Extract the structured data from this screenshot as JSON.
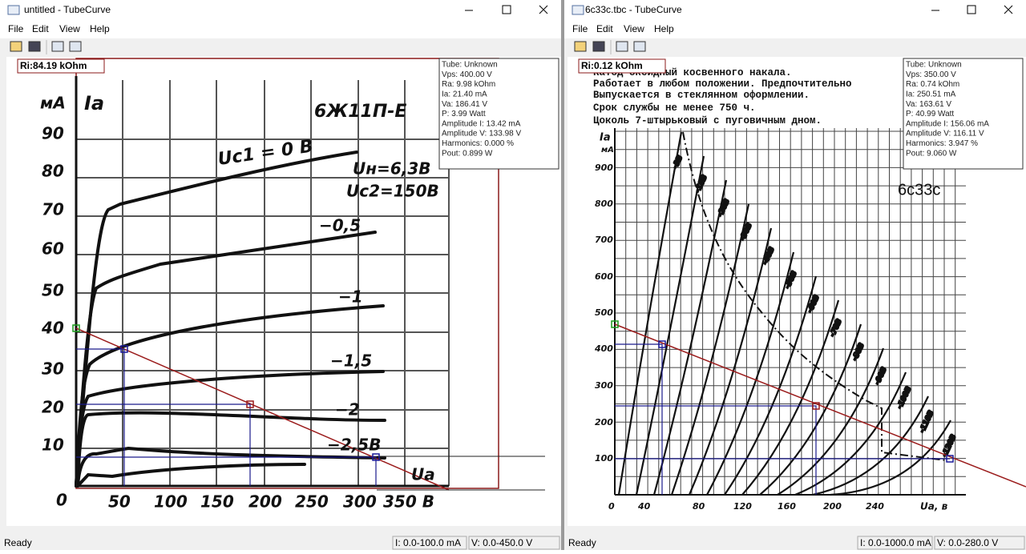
{
  "windows": [
    {
      "title": "untitled - TubeCurve",
      "menu": [
        "File",
        "Edit",
        "View",
        "Help"
      ],
      "ri": "Ri:84.19 kOhm",
      "info": [
        "Tube: Unknown",
        "Vps: 400.00 V",
        "Ra: 9.98 kOhm",
        "Ia: 21.40 mA",
        "Va: 186.41 V",
        "P: 3.99 Watt",
        "Amplitude I: 13.42 mA",
        "Amplitude V: 133.98 V",
        "Harmonics: 0.000 %",
        "Pout: 0.899 W"
      ],
      "status": {
        "ready": "Ready",
        "current": "I: 0.0-100.0 mA",
        "voltage": "V: 0.0-450.0 V"
      },
      "scan": {
        "unit": "мА",
        "axis_y": "Iа",
        "tube": "6Ж11П-Е",
        "yticks": [
          "0",
          "10",
          "20",
          "30",
          "40",
          "50",
          "60",
          "70",
          "80",
          "90"
        ],
        "xticks": [
          "50",
          "100",
          "150",
          "200",
          "250",
          "300",
          "350 В"
        ],
        "notes": [
          "Uc1 = 0 B",
          "Uн=6,3B",
          "Uc2=150B",
          "−0,5",
          "−1",
          "−1,5",
          "−2",
          "−2,5B",
          "Uа"
        ]
      }
    },
    {
      "title": "6c33c.tbc - TubeCurve",
      "menu": [
        "File",
        "Edit",
        "View",
        "Help"
      ],
      "ri": "Ri:0.12 kOhm",
      "info": [
        "Tube: Unknown",
        "Vps: 350.00 V",
        "Ra: 0.74 kOhm",
        "Ia: 250.51 mA",
        "Va: 163.61 V",
        "P: 40.99 Watt",
        "Amplitude I: 156.06 mA",
        "Amplitude V: 116.11 V",
        "Harmonics: 3.947 %",
        "Pout: 9.060 W"
      ],
      "status": {
        "ready": "Ready",
        "current": "I: 0.0-1000.0 mA",
        "voltage": "V: 0.0-280.0 V"
      },
      "scan": {
        "unit": "мА",
        "axis_y": "Iа",
        "tube": "6c33c",
        "text": [
          "Катод оксидный косвенного накала.",
          "Работает в любом положении. Предпочтительно",
          "Выпускается в стеклянном оформлении.",
          "Срок службы не менее 750 ч.",
          "Цоколь 7-штырьковый с пуговичным дном."
        ],
        "yticks": [
          "100",
          "200",
          "300",
          "400",
          "500",
          "600",
          "700",
          "800",
          "900"
        ],
        "xticks": [
          "0",
          "40",
          "80",
          "120",
          "160",
          "200",
          "240"
        ],
        "xlabel": "Uа, в",
        "curves": [
          "-3В",
          "-10В",
          "-20В",
          "-30В",
          "-40В",
          "-50В",
          "-60В",
          "-70В",
          "-80В",
          "-90В",
          "-100В",
          "-110В",
          "-120В"
        ]
      }
    }
  ]
}
